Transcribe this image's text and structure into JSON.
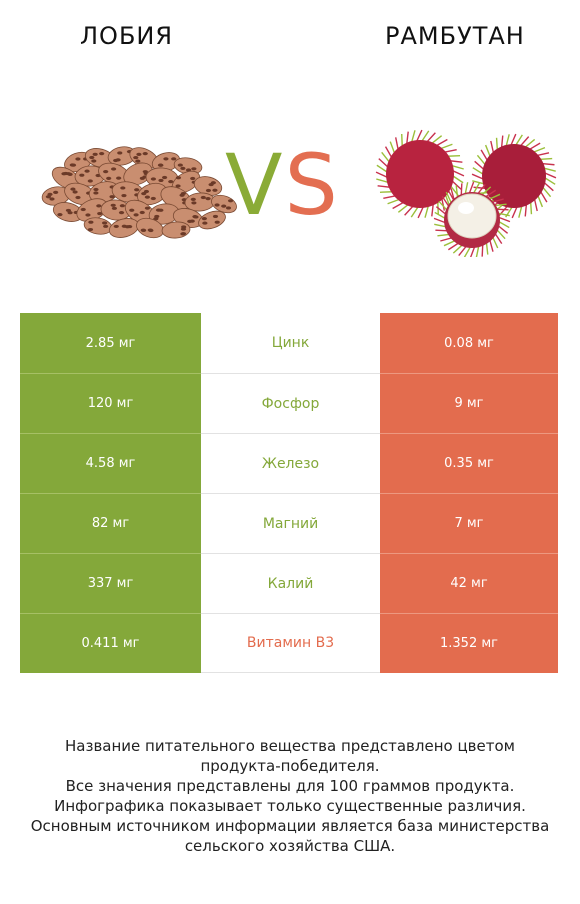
{
  "header": {
    "left_title": "ЛОБИЯ",
    "right_title": "РАМБУТАН",
    "vs_v": "V",
    "vs_s": "S"
  },
  "colors": {
    "left": "#84a83a",
    "right": "#e36c4e"
  },
  "rows": [
    {
      "left": "2.85 мг",
      "nutrient": "Цинк",
      "right": "0.08 мг",
      "winner": "left"
    },
    {
      "left": "120 мг",
      "nutrient": "Фосфор",
      "right": "9 мг",
      "winner": "left"
    },
    {
      "left": "4.58 мг",
      "nutrient": "Железо",
      "right": "0.35 мг",
      "winner": "left"
    },
    {
      "left": "82 мг",
      "nutrient": "Магний",
      "right": "7 мг",
      "winner": "left"
    },
    {
      "left": "337 мг",
      "nutrient": "Калий",
      "right": "42 мг",
      "winner": "left"
    },
    {
      "left": "0.411 мг",
      "nutrient": "Витамин B3",
      "right": "1.352 мг",
      "winner": "right"
    }
  ],
  "footer": {
    "lines": [
      "Название питательного вещества представлено цветом",
      "продукта-победителя.",
      "Все значения представлены для 100 граммов продукта.",
      "Инфографика показывает только существенные различия.",
      "Основным источником информации является база министерства",
      "сельского хозяйства США."
    ]
  }
}
